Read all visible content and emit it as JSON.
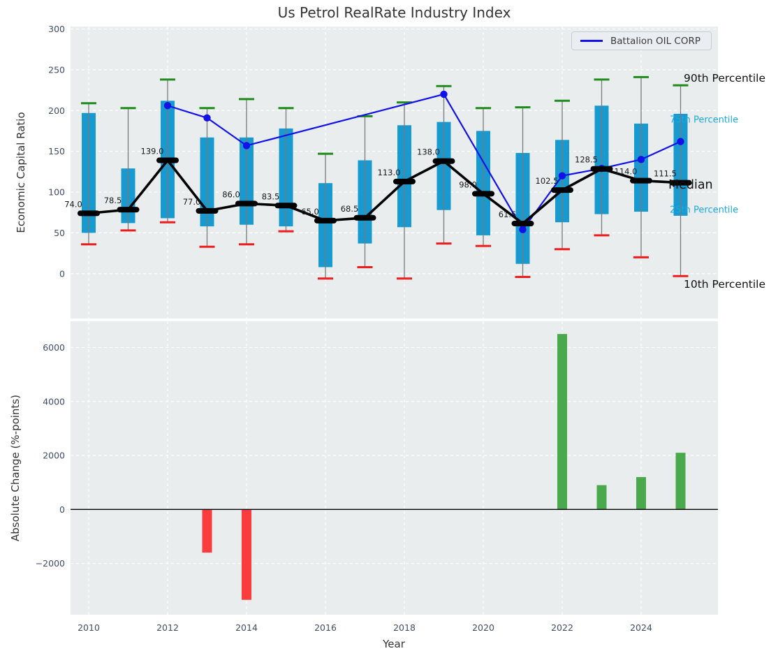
{
  "figure": {
    "background": "#ffffff",
    "plot_background": "#e9edee",
    "grid_color": "#ffffff",
    "tick_color": "#3f4c66",
    "text_color": "#333333"
  },
  "chart_data": [
    {
      "type": "boxplot",
      "title": "Us Petrol RealRate Industry Index",
      "ylabel": "Economic Capital Ratio",
      "ylim": [
        -55,
        303
      ],
      "yticks": [
        0,
        50,
        100,
        150,
        200,
        250,
        300
      ],
      "xlim": [
        2009.55,
        2025.95
      ],
      "grid": true,
      "legend": {
        "label": "Battalion OIL CORP",
        "position": "upper right"
      },
      "percentile_labels": [
        {
          "text": "90th Percentile",
          "color": "#111111"
        },
        {
          "text": "75th Percentile",
          "color": "#1da9dc"
        },
        {
          "text": "Median",
          "color": "#111111"
        },
        {
          "text": "25th Percentile",
          "color": "#1da9dc"
        },
        {
          "text": "10th Percentile",
          "color": "#111111"
        }
      ],
      "years": [
        2010,
        2011,
        2012,
        2013,
        2014,
        2015,
        2016,
        2017,
        2018,
        2019,
        2020,
        2021,
        2022,
        2023,
        2024,
        2025
      ],
      "p90": [
        209,
        203,
        238,
        203,
        214,
        203,
        147,
        193,
        210,
        230,
        203,
        204,
        212,
        238,
        241,
        231
      ],
      "p75": [
        197,
        129,
        212,
        167,
        167,
        178,
        111,
        139,
        182,
        186,
        175,
        148,
        164,
        206,
        184,
        196
      ],
      "median": [
        74.0,
        78.5,
        139.0,
        77.0,
        86.0,
        83.5,
        65.0,
        68.5,
        113.0,
        138.0,
        98.0,
        61.5,
        102.5,
        128.5,
        114.0,
        111.5
      ],
      "p25": [
        50,
        62,
        68,
        58,
        60,
        58,
        8,
        37,
        57,
        78,
        47,
        12,
        63,
        73,
        76,
        71
      ],
      "p10": [
        36,
        53,
        63,
        33,
        36,
        52,
        -6,
        8,
        -6,
        37,
        34,
        -4,
        30,
        47,
        20,
        -3
      ],
      "company_line": {
        "name": "Battalion OIL CORP",
        "x": [
          2012,
          2013,
          2014,
          2019,
          2021,
          2022,
          2023,
          2024,
          2025
        ],
        "y": [
          206,
          191,
          157,
          220,
          54,
          120,
          129,
          140,
          162
        ]
      },
      "colors": {
        "box": "#1899cf",
        "p90_cap": "#1f8b1c",
        "p10_cap": "#ee1c1c",
        "median": "#000000",
        "whisker": "#7a7a7a",
        "company": "#1212e8"
      }
    },
    {
      "type": "bar",
      "ylabel": "Absolute Change (%-points)",
      "xlabel": "Year",
      "ylim": [
        -3900,
        6970
      ],
      "yticks": [
        -2000,
        0,
        2000,
        4000,
        6000
      ],
      "xticks": [
        2010,
        2012,
        2014,
        2016,
        2018,
        2020,
        2022,
        2024
      ],
      "x": [
        2013,
        2014,
        2022,
        2023,
        2024,
        2025
      ],
      "values": [
        -1600,
        -3350,
        6500,
        900,
        1200,
        2100
      ],
      "colors": {
        "positive": "#4aa84d",
        "negative": "#fa3c3c",
        "zero_line": "#000000"
      }
    }
  ]
}
